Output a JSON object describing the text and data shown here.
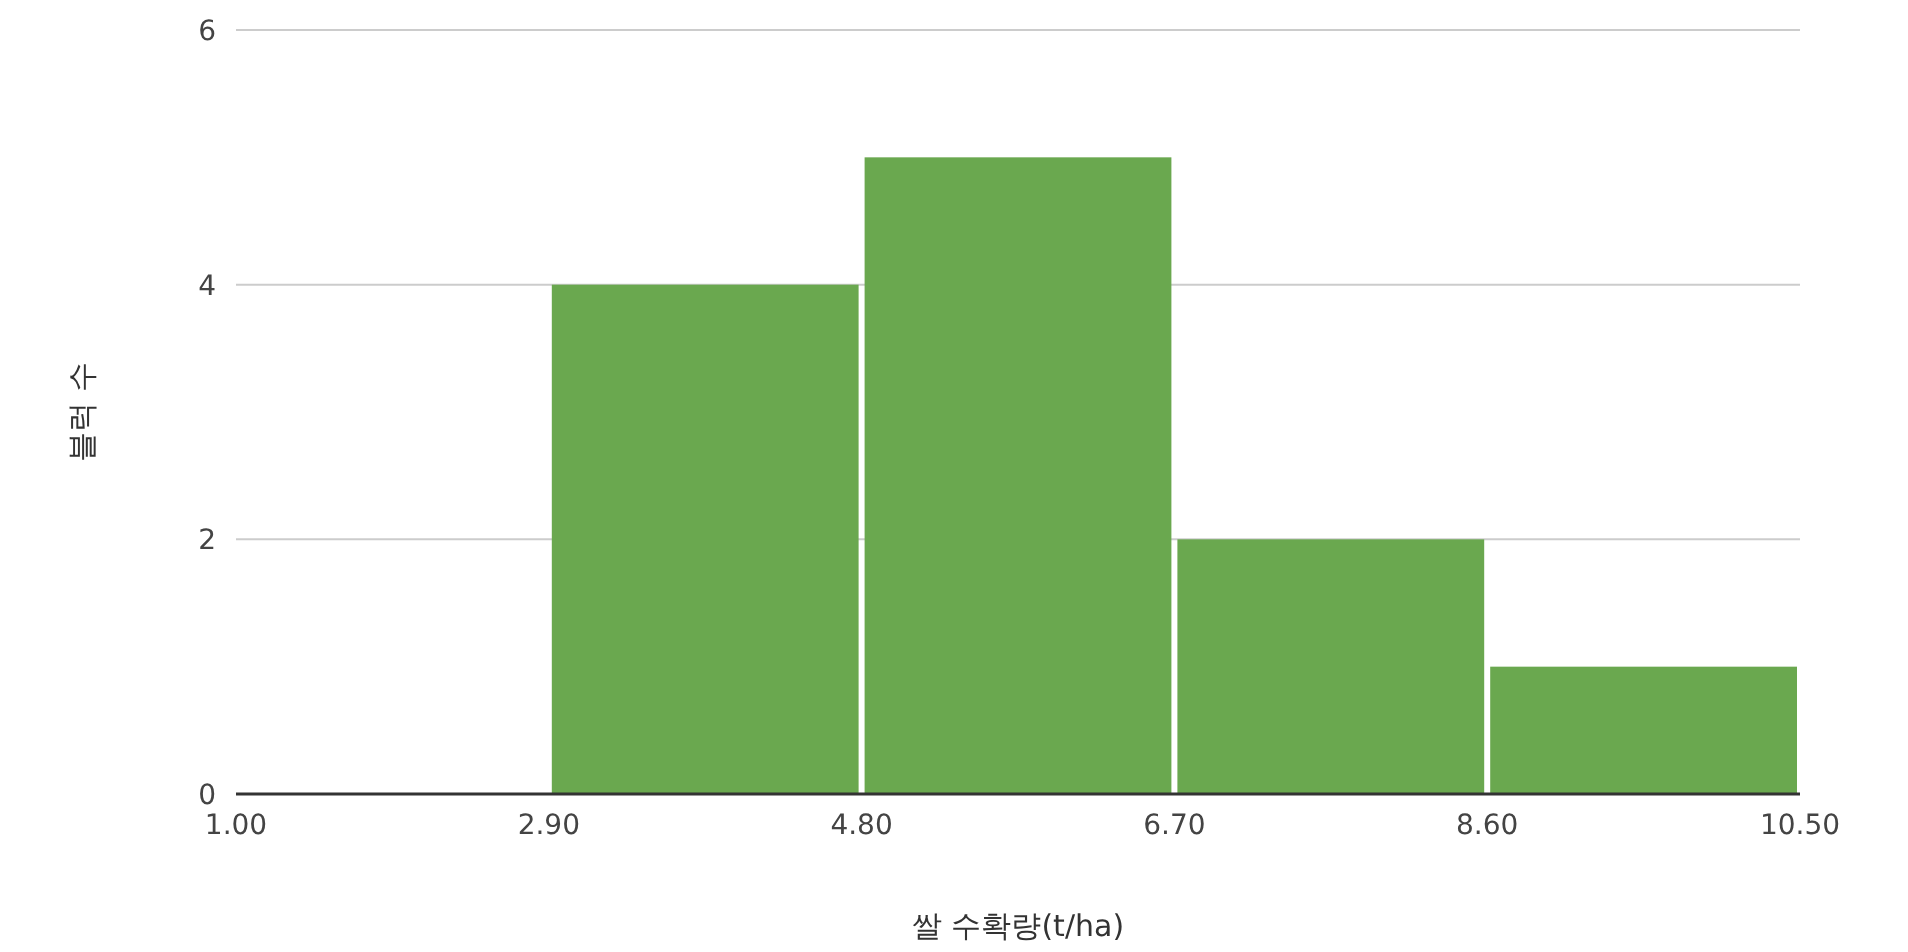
{
  "chart_data": {
    "type": "histogram",
    "xlabel": "쌀 수확량(t/ha)",
    "ylabel": "블럭 수",
    "bins": [
      1.0,
      2.9,
      4.8,
      6.7,
      8.6,
      10.5
    ],
    "values": [
      0,
      4,
      5,
      2,
      1
    ],
    "color": "#6aa84f",
    "xlim": [
      1.0,
      10.5
    ],
    "xticks": [
      {
        "value": 1.0,
        "label": "1.00"
      },
      {
        "value": 2.9,
        "label": "2.90"
      },
      {
        "value": 4.8,
        "label": "4.80"
      },
      {
        "value": 6.7,
        "label": "6.70"
      },
      {
        "value": 8.6,
        "label": "8.60"
      },
      {
        "value": 10.5,
        "label": "10.50"
      }
    ],
    "ylim": [
      0,
      6
    ],
    "yticks": [
      0,
      2,
      4,
      6
    ],
    "grid": "y"
  }
}
